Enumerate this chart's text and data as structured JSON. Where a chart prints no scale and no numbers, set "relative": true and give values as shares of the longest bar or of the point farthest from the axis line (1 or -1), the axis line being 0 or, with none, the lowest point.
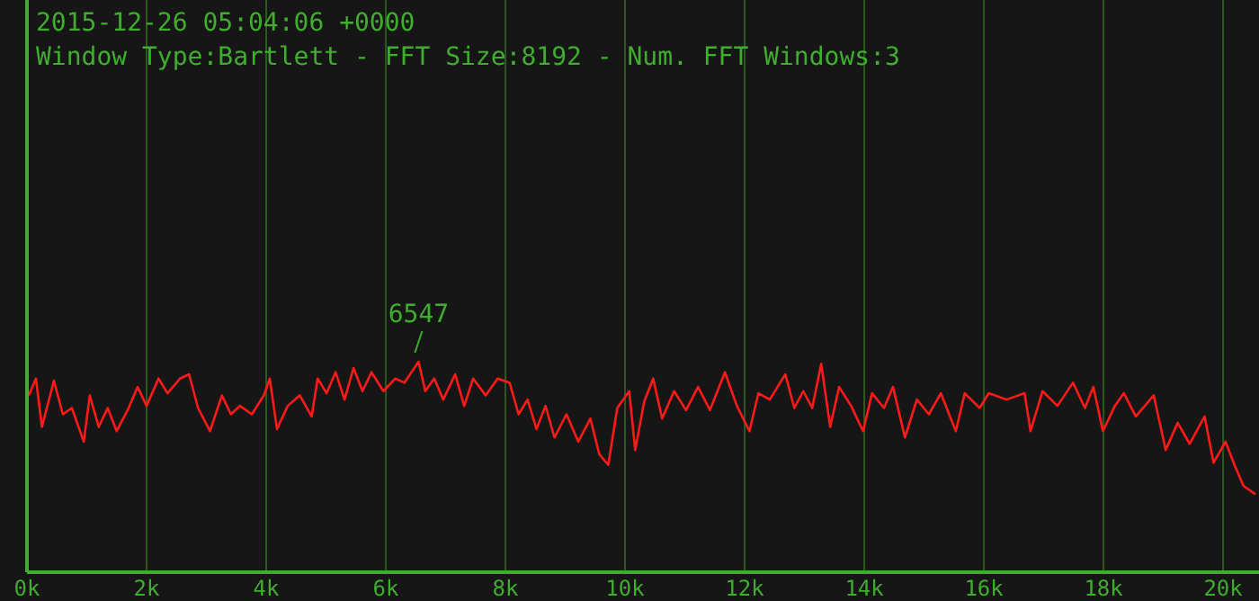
{
  "chart_data": {
    "type": "line",
    "title": "2015-12-26 05:04:06 +0000",
    "subtitle": "Window Type:Bartlett - FFT Size:8192 - Num. FFT Windows:3",
    "relative": true,
    "grid": "x",
    "marker": "none",
    "line_style": "solid",
    "xlim": [
      0,
      20600
    ],
    "xticks": [
      {
        "value": 0,
        "label": "0k"
      },
      {
        "value": 2000,
        "label": "2k"
      },
      {
        "value": 4000,
        "label": "4k"
      },
      {
        "value": 6000,
        "label": "6k"
      },
      {
        "value": 8000,
        "label": "8k"
      },
      {
        "value": 10000,
        "label": "10k"
      },
      {
        "value": 12000,
        "label": "12k"
      },
      {
        "value": 14000,
        "label": "14k"
      },
      {
        "value": 16000,
        "label": "16k"
      },
      {
        "value": 18000,
        "label": "18k"
      },
      {
        "value": 20000,
        "label": "20k"
      }
    ],
    "annotations": [
      {
        "text": "6547",
        "x": 6547,
        "y": 1
      }
    ],
    "series": [
      {
        "color": "#ff1a1a",
        "x": [
          30,
          150,
          250,
          450,
          600,
          750,
          950,
          1050,
          1200,
          1350,
          1500,
          1700,
          1850,
          2000,
          2200,
          2350,
          2560,
          2710,
          2860,
          3060,
          3260,
          3410,
          3560,
          3760,
          3960,
          4060,
          4180,
          4360,
          4560,
          4760,
          4860,
          5010,
          5160,
          5310,
          5460,
          5610,
          5760,
          5960,
          6160,
          6310,
          6547,
          6660,
          6810,
          6960,
          7160,
          7310,
          7460,
          7670,
          7870,
          8070,
          8220,
          8370,
          8520,
          8670,
          8820,
          9020,
          9220,
          9420,
          9570,
          9720,
          9870,
          10070,
          10170,
          10320,
          10470,
          10620,
          10820,
          11020,
          11220,
          11420,
          11670,
          11870,
          12080,
          12230,
          12420,
          12680,
          12830,
          12980,
          13130,
          13280,
          13430,
          13580,
          13780,
          13980,
          14130,
          14330,
          14480,
          14680,
          14880,
          15080,
          15280,
          15530,
          15680,
          15930,
          16080,
          16380,
          16680,
          16780,
          16980,
          17230,
          17490,
          17690,
          17830,
          17990,
          18190,
          18340,
          18540,
          18840,
          19040,
          19240,
          19440,
          19690,
          19840,
          20040,
          20190,
          20340,
          20540
        ],
        "values": [
          0.84,
          0.92,
          0.69,
          0.91,
          0.75,
          0.78,
          0.62,
          0.84,
          0.69,
          0.78,
          0.67,
          0.78,
          0.88,
          0.79,
          0.92,
          0.85,
          0.92,
          0.94,
          0.78,
          0.67,
          0.84,
          0.75,
          0.79,
          0.75,
          0.84,
          0.92,
          0.68,
          0.79,
          0.84,
          0.74,
          0.92,
          0.85,
          0.95,
          0.82,
          0.97,
          0.86,
          0.95,
          0.86,
          0.92,
          0.9,
          1,
          0.86,
          0.92,
          0.82,
          0.94,
          0.79,
          0.92,
          0.84,
          0.92,
          0.9,
          0.75,
          0.82,
          0.68,
          0.79,
          0.64,
          0.75,
          0.62,
          0.73,
          0.56,
          0.51,
          0.78,
          0.86,
          0.58,
          0.81,
          0.92,
          0.73,
          0.86,
          0.77,
          0.88,
          0.77,
          0.95,
          0.79,
          0.67,
          0.85,
          0.82,
          0.94,
          0.78,
          0.86,
          0.78,
          0.99,
          0.69,
          0.88,
          0.79,
          0.67,
          0.85,
          0.78,
          0.88,
          0.64,
          0.82,
          0.75,
          0.85,
          0.67,
          0.85,
          0.78,
          0.85,
          0.82,
          0.85,
          0.67,
          0.86,
          0.79,
          0.9,
          0.78,
          0.88,
          0.67,
          0.79,
          0.85,
          0.74,
          0.84,
          0.58,
          0.71,
          0.61,
          0.74,
          0.52,
          0.62,
          0.51,
          0.41,
          0.37
        ]
      }
    ]
  }
}
